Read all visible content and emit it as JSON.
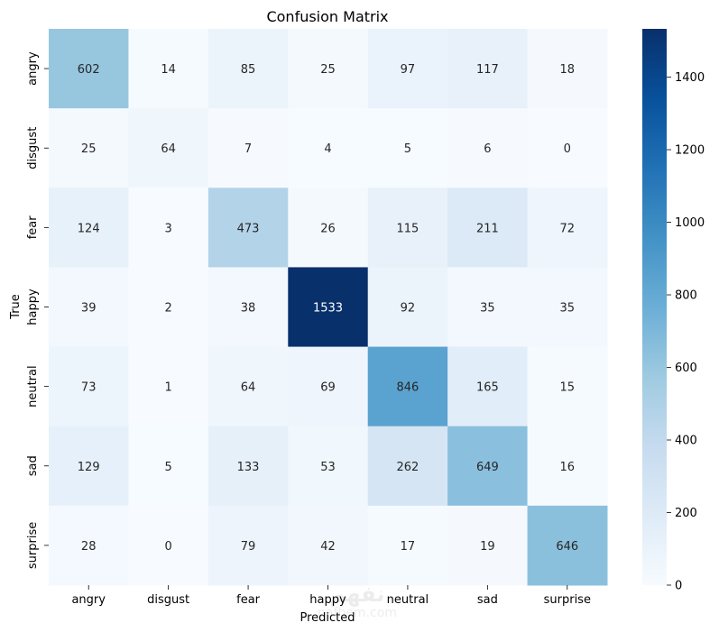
{
  "chart_data": {
    "type": "heatmap",
    "title": "Confusion Matrix",
    "xlabel": "Predicted",
    "ylabel": "True",
    "x_categories": [
      "angry",
      "disgust",
      "fear",
      "happy",
      "neutral",
      "sad",
      "surprise"
    ],
    "y_categories": [
      "angry",
      "disgust",
      "fear",
      "happy",
      "neutral",
      "sad",
      "surprise"
    ],
    "values": [
      [
        602,
        14,
        85,
        25,
        97,
        117,
        18
      ],
      [
        25,
        64,
        7,
        4,
        5,
        6,
        0
      ],
      [
        124,
        3,
        473,
        26,
        115,
        211,
        72
      ],
      [
        39,
        2,
        38,
        1533,
        92,
        35,
        35
      ],
      [
        73,
        1,
        64,
        69,
        846,
        165,
        15
      ],
      [
        129,
        5,
        133,
        53,
        262,
        649,
        16
      ],
      [
        28,
        0,
        79,
        42,
        17,
        19,
        646
      ]
    ],
    "colorbar": {
      "min": 0,
      "max": 1533,
      "ticks": [
        0,
        200,
        400,
        600,
        800,
        1000,
        1200,
        1400
      ],
      "colormap": "Blues"
    },
    "colors": {
      "colormap_stops": [
        "#f7fbff",
        "#deebf7",
        "#c6dbef",
        "#9ecae1",
        "#6baed6",
        "#4292c6",
        "#2171b5",
        "#08519c",
        "#08306b"
      ],
      "text_dark": "#262626",
      "text_light": "#ffffff"
    }
  },
  "watermark": {
    "line1": "نفهم",
    "line2": "nafhem.com"
  }
}
